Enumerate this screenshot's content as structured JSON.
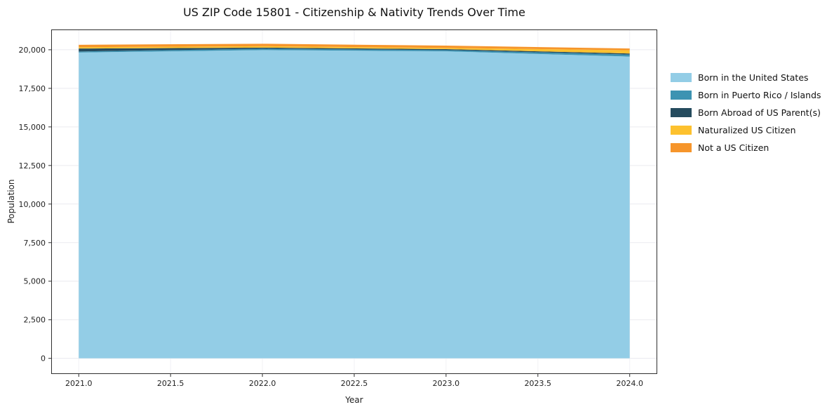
{
  "title": "US ZIP Code 15801 - Citizenship & Nativity Trends Over Time",
  "chart_data": {
    "type": "area",
    "stacked": true,
    "title": "US ZIP Code 15801 - Citizenship & Nativity Trends Over Time",
    "xlabel": "Year",
    "ylabel": "Population",
    "x": [
      2021,
      2022,
      2023,
      2024
    ],
    "series": [
      {
        "name": "Born in the United States",
        "color": "#93cde6",
        "values": [
          19820,
          19980,
          19900,
          19560
        ]
      },
      {
        "name": "Born in Puerto Rico / Islands",
        "color": "#3d93b2",
        "values": [
          70,
          90,
          80,
          130
        ]
      },
      {
        "name": "Born Abroad of US Parent(s)",
        "color": "#254b5e",
        "values": [
          190,
          70,
          60,
          70
        ]
      },
      {
        "name": "Naturalized US Citizen",
        "color": "#fdc12e",
        "values": [
          90,
          90,
          80,
          210
        ]
      },
      {
        "name": "Not a US Citizen",
        "color": "#f6952b",
        "values": [
          150,
          160,
          150,
          110
        ]
      }
    ],
    "xlim": [
      2020.85,
      2024.15
    ],
    "ylim": [
      -1015,
      21315
    ],
    "xticks": [
      2021.0,
      2021.5,
      2022.0,
      2022.5,
      2023.0,
      2023.5,
      2024.0
    ],
    "xtick_labels": [
      "2021.0",
      "2021.5",
      "2022.0",
      "2022.5",
      "2023.0",
      "2023.5",
      "2024.0"
    ],
    "yticks": [
      0,
      2500,
      5000,
      7500,
      10000,
      12500,
      15000,
      17500,
      20000
    ],
    "ytick_labels": [
      "0",
      "2,500",
      "5,000",
      "7,500",
      "10,000",
      "12,500",
      "15,000",
      "17,500",
      "20,000"
    ],
    "grid": true,
    "legend_position": "right"
  }
}
